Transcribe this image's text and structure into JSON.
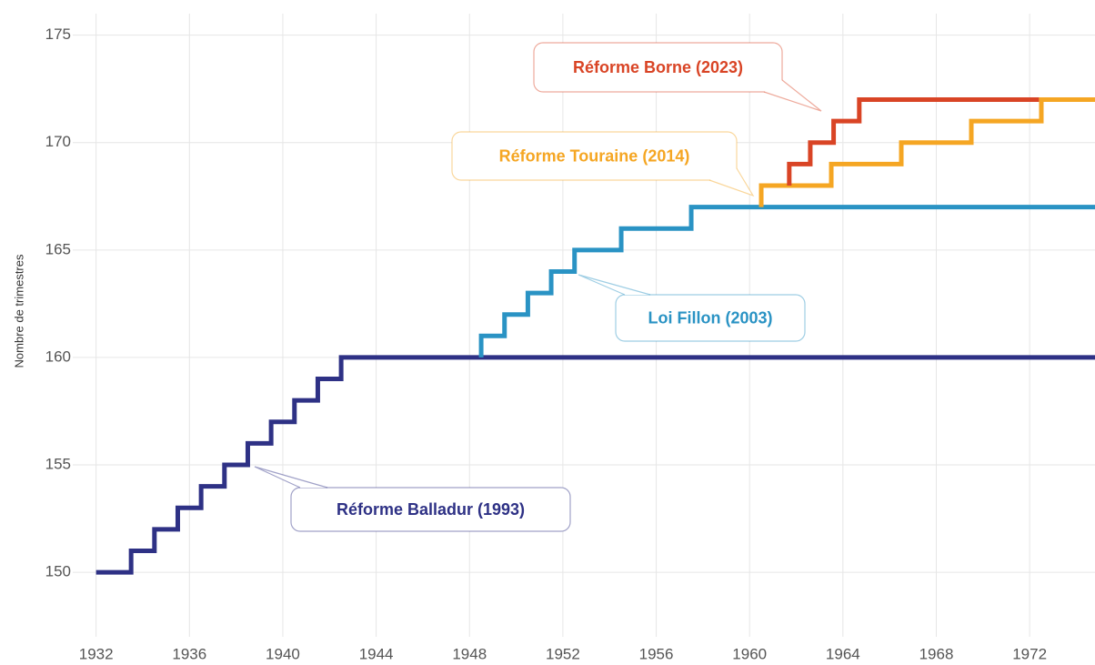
{
  "chart_data": {
    "type": "step",
    "y_label": "Nombre de trimestres",
    "xlim": [
      1931,
      1974.8
    ],
    "ylim": [
      147,
      176
    ],
    "xticks": [
      1932,
      1936,
      1940,
      1944,
      1948,
      1952,
      1956,
      1960,
      1964,
      1968,
      1972
    ],
    "yticks": [
      150,
      155,
      160,
      165,
      170,
      175
    ],
    "grid": true,
    "series": [
      {
        "name": "Réforme Balladur (1993)",
        "color": "#2e3185",
        "x": [
          1932,
          1933.5,
          1934.5,
          1935.5,
          1936.5,
          1937.5,
          1938.5,
          1939.5,
          1940.5,
          1941.5,
          1942.5,
          1974.8
        ],
        "values": [
          150,
          151,
          152,
          153,
          154,
          155,
          156,
          157,
          158,
          159,
          160,
          160
        ]
      },
      {
        "name": "Loi Fillon (2003)",
        "color": "#2a93c4",
        "x": [
          1948.5,
          1948.5,
          1949.5,
          1950.5,
          1951.5,
          1952.5,
          1954.5,
          1957.5,
          1974.8
        ],
        "values": [
          160,
          161,
          162,
          163,
          164,
          165,
          166,
          167,
          167
        ]
      },
      {
        "name": "Réforme Touraine (2014)",
        "color": "#f5a623",
        "x": [
          1960.5,
          1960.5,
          1963.5,
          1966.5,
          1969.5,
          1972.5,
          1974.8
        ],
        "values": [
          167,
          168,
          169,
          170,
          171,
          172,
          172
        ]
      },
      {
        "name": "Réforme Borne (2023)",
        "color": "#d94425",
        "x": [
          1961.7,
          1961.7,
          1962.6,
          1963.6,
          1964.7,
          1972.4
        ],
        "values": [
          168,
          169,
          170,
          171,
          172,
          172
        ]
      }
    ]
  }
}
